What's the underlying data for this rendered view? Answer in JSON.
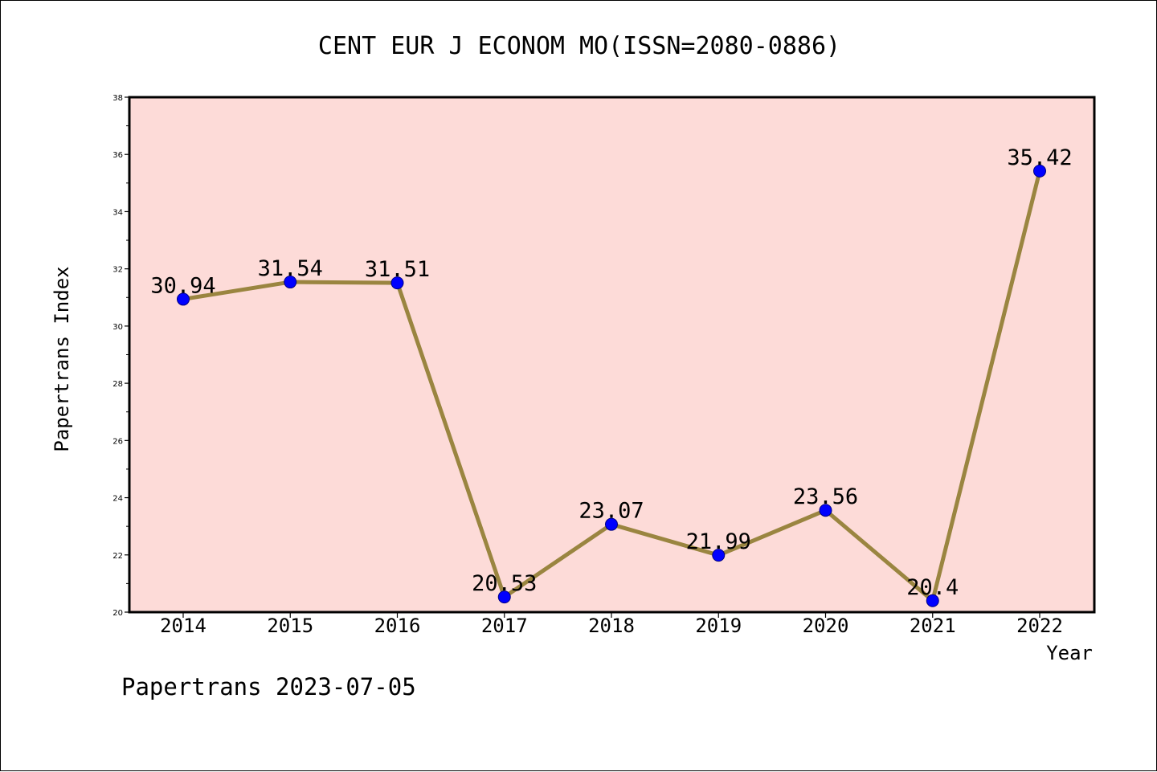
{
  "chart_data": {
    "type": "line",
    "title": "CENT EUR J ECONOM MO(ISSN=2080-0886)",
    "xlabel": "Year",
    "ylabel": "Papertrans Index",
    "categories": [
      "2014",
      "2015",
      "2016",
      "2017",
      "2018",
      "2019",
      "2020",
      "2021",
      "2022"
    ],
    "series": [
      {
        "values": [
          30.94,
          31.54,
          31.51,
          20.53,
          23.07,
          21.99,
          23.56,
          20.4,
          35.42
        ],
        "labels": [
          "30.94",
          "31.54",
          "31.51",
          "20.53",
          "23.07",
          "21.99",
          "23.56",
          "20.4",
          "35.42"
        ]
      }
    ],
    "ylim": [
      20,
      38
    ],
    "yticks": [
      20,
      22,
      24,
      26,
      28,
      30,
      32,
      34,
      36,
      38
    ],
    "grid": false,
    "legend": "none"
  },
  "footer": "Papertrans 2023-07-05",
  "colors": {
    "plot_background": "#fddbd8",
    "line": "#9a8540",
    "marker": "#0000ff",
    "axes": "#000000"
  }
}
